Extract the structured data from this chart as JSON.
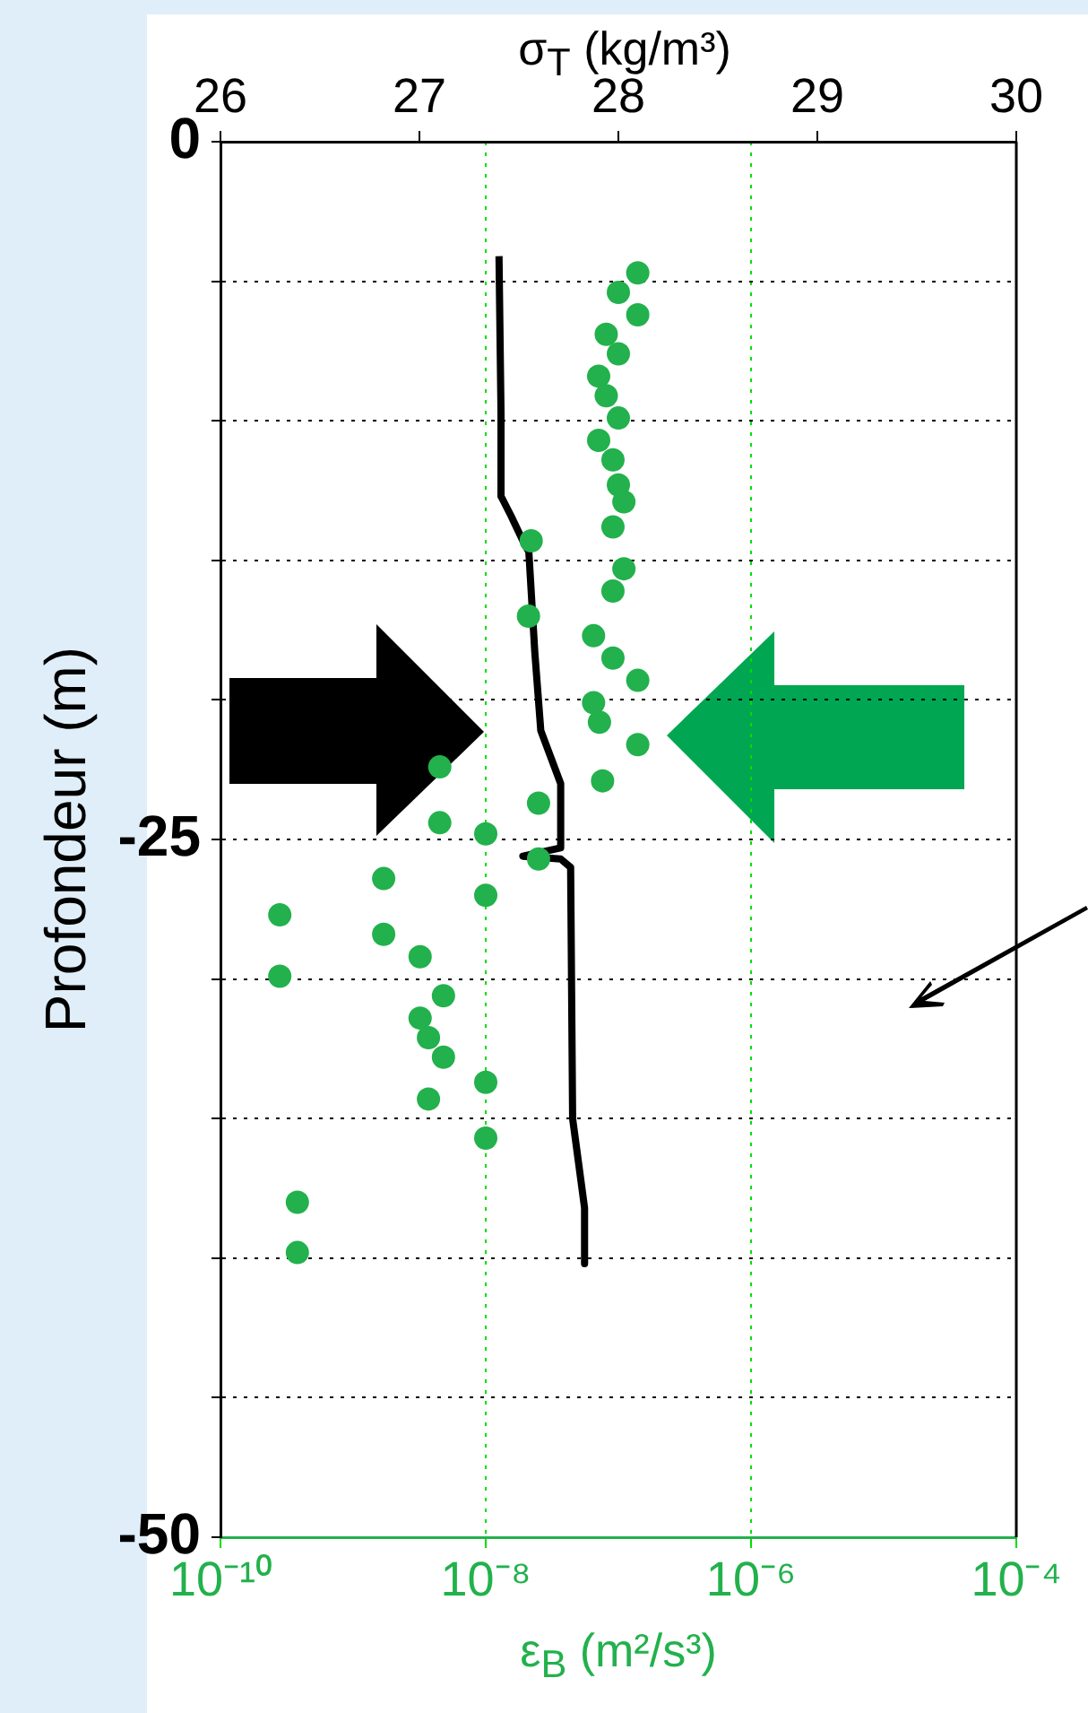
{
  "chart_data": {
    "type": "scatter",
    "x2label": "σ$_{T}$ (kg/m³)",
    "xlabel": "ε$_{B}$ (m²/s³)",
    "ylabel": "Profondeur (m)",
    "xlim": [
      1e-10,
      0.0001
    ],
    "xticks": [
      {
        "value": 1e-10,
        "label": "10⁻¹⁰"
      },
      {
        "value": 1e-08,
        "label": "10⁻⁸"
      },
      {
        "value": 1e-06,
        "label": "10⁻⁶"
      },
      {
        "value": 0.0001,
        "label": "10⁻⁴"
      }
    ],
    "x2lim": [
      26,
      30
    ],
    "x2ticks": [
      26,
      27,
      28,
      29,
      30
    ],
    "ylim": [
      -50,
      0
    ],
    "yticks": [
      0,
      {
        "value": -5,
        "label": null
      },
      {
        "value": -10,
        "label": null
      },
      {
        "value": -15,
        "label": null
      },
      {
        "value": -20,
        "label": null
      },
      -25,
      {
        "value": -30,
        "label": null
      },
      {
        "value": -35,
        "label": null
      },
      {
        "value": -40,
        "label": null
      },
      {
        "value": -45,
        "label": null
      },
      -50
    ],
    "log": "x",
    "grid": true,
    "marker": "circle",
    "series": [
      {
        "type": "scatter",
        "color": "#22b14c",
        "x": [
          1.4e-07,
          1e-07,
          1.4e-07,
          8.1e-08,
          1e-07,
          7.1e-08,
          8.1e-08,
          1e-07,
          7.1e-08,
          9.1e-08,
          1e-07,
          1.1e-07,
          9.1e-08,
          2.2e-08,
          1.1e-07,
          9.1e-08,
          2.1e-08,
          6.5e-08,
          9.1e-08,
          1.4e-07,
          6.5e-08,
          7.2e-08,
          1.4e-07,
          4.5e-09,
          7.6e-08,
          2.5e-08,
          4.5e-09,
          1e-08,
          2.5e-08,
          1.7e-09,
          1e-08,
          2.8e-10,
          1.7e-09,
          3.2e-09,
          2.8e-10,
          4.8e-09,
          3.2e-09,
          3.7e-09,
          4.8e-09,
          1e-08,
          3.7e-09,
          1e-08,
          3.8e-10,
          3.8e-10
        ],
        "values": [
          -4.7,
          -5.4,
          -6.2,
          -6.9,
          -7.6,
          -8.4,
          -9.1,
          -9.9,
          -10.7,
          -11.4,
          -12.3,
          -12.9,
          -13.8,
          -14.3,
          -15.3,
          -16.1,
          -17.0,
          -17.7,
          -18.5,
          -19.3,
          -20.1,
          -20.8,
          -21.6,
          -22.4,
          -22.9,
          -23.7,
          -24.4,
          -24.8,
          -25.7,
          -26.4,
          -27.0,
          -27.7,
          -28.4,
          -29.2,
          -29.9,
          -30.6,
          -31.4,
          -32.1,
          -32.8,
          -33.7,
          -34.3,
          -35.7,
          -38.0,
          -39.8
        ]
      },
      {
        "type": "line",
        "axis": "x2",
        "color": "#000000",
        "marker": "none",
        "x": [
          27.4,
          27.41,
          27.41,
          27.46,
          27.52,
          27.55,
          27.58,
          27.61,
          27.71,
          27.71,
          27.52,
          27.71,
          27.76,
          27.77,
          27.83,
          27.83
        ],
        "values": [
          -4.1,
          -9.7,
          -12.7,
          -13.4,
          -14.3,
          -14.7,
          -18.3,
          -21.1,
          -23.0,
          -25.3,
          -25.6,
          -25.7,
          -26.0,
          -35.0,
          -38.2,
          -40.2
        ]
      }
    ]
  }
}
